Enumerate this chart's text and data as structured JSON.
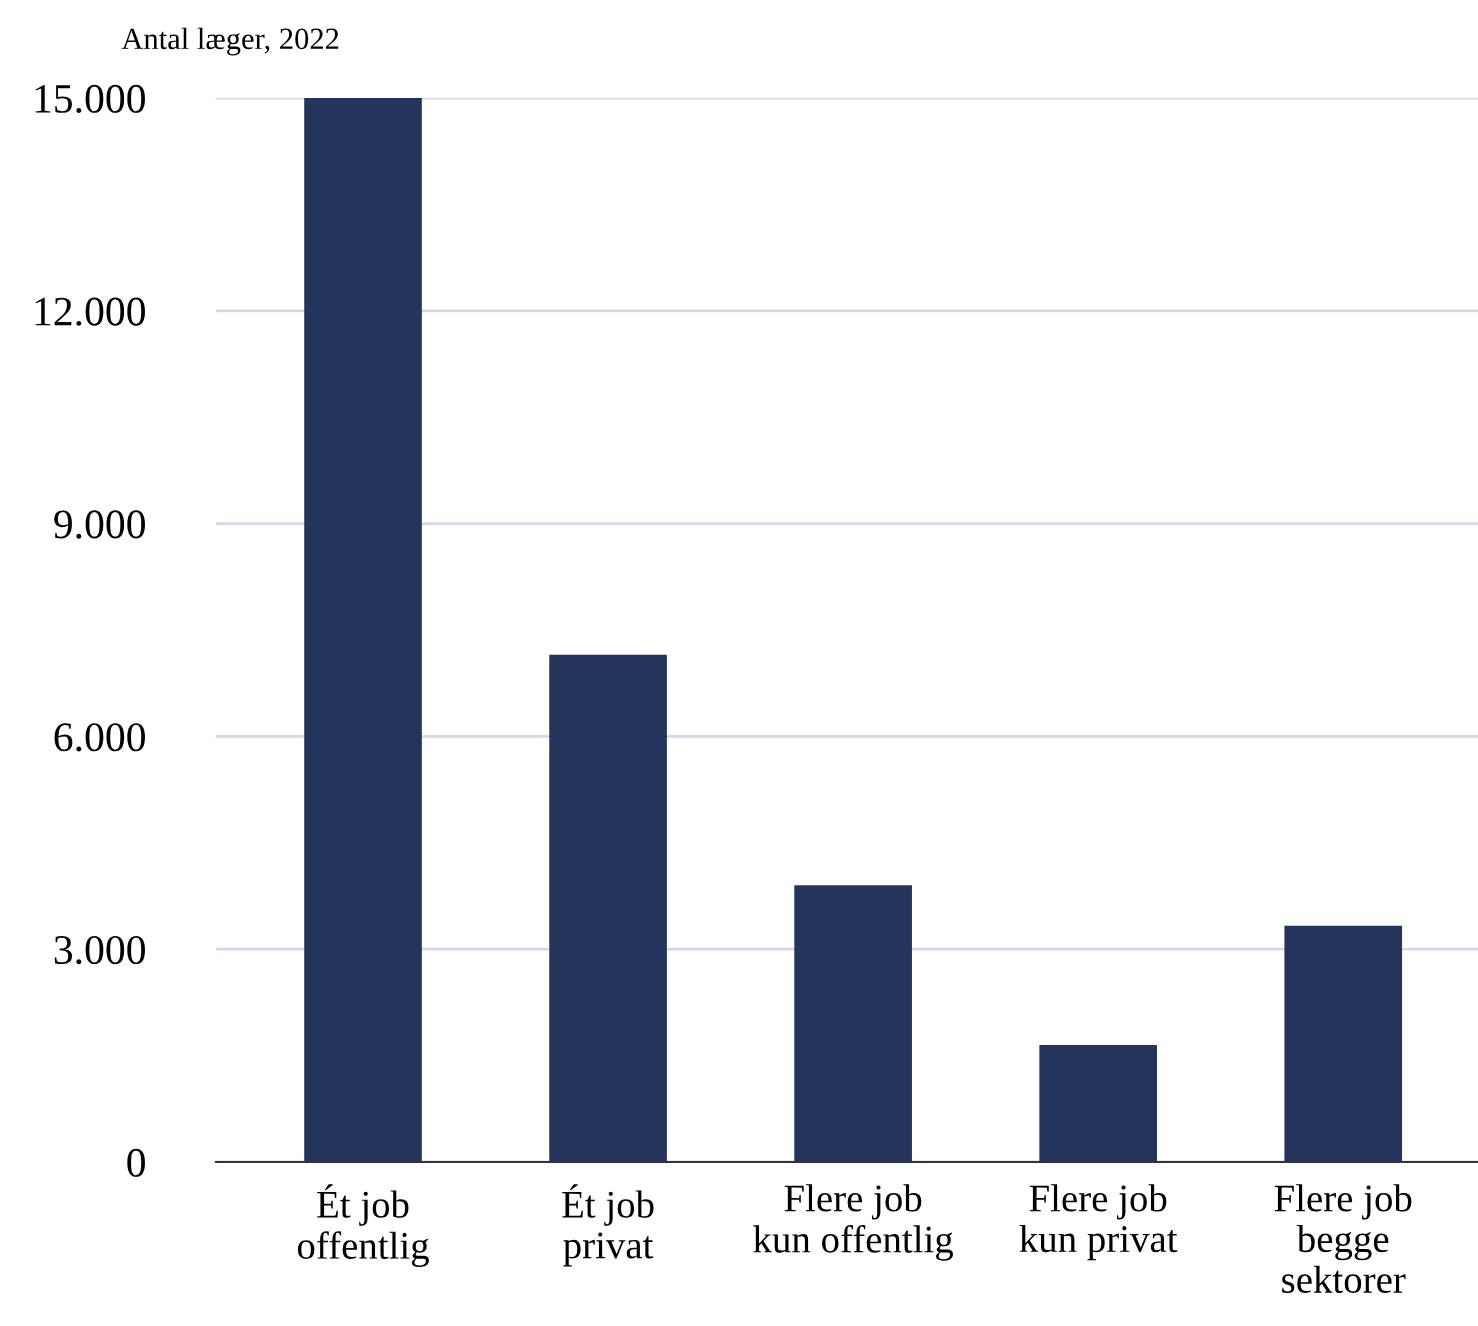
{
  "chart_data": {
    "type": "bar",
    "ylabel": "Antal læger, 2022",
    "categories": [
      "Ét job\noffentlig",
      "Ét job\nprivat",
      "Flere job\nkun offentlig",
      "Flere job\nkun privat",
      "Flere job\nbegge\nsektorer"
    ],
    "values": [
      15000,
      7150,
      3900,
      1650,
      3330
    ],
    "color": "#25345c",
    "ylim": [
      0,
      15000
    ],
    "yticks": [
      {
        "value": 0,
        "label": "0"
      },
      {
        "value": 3000,
        "label": "3.000"
      },
      {
        "value": 6000,
        "label": "6.000"
      },
      {
        "value": 9000,
        "label": "9.000"
      },
      {
        "value": 12000,
        "label": "12.000"
      },
      {
        "value": 15000,
        "label": "15.000"
      }
    ],
    "grid": "y"
  }
}
